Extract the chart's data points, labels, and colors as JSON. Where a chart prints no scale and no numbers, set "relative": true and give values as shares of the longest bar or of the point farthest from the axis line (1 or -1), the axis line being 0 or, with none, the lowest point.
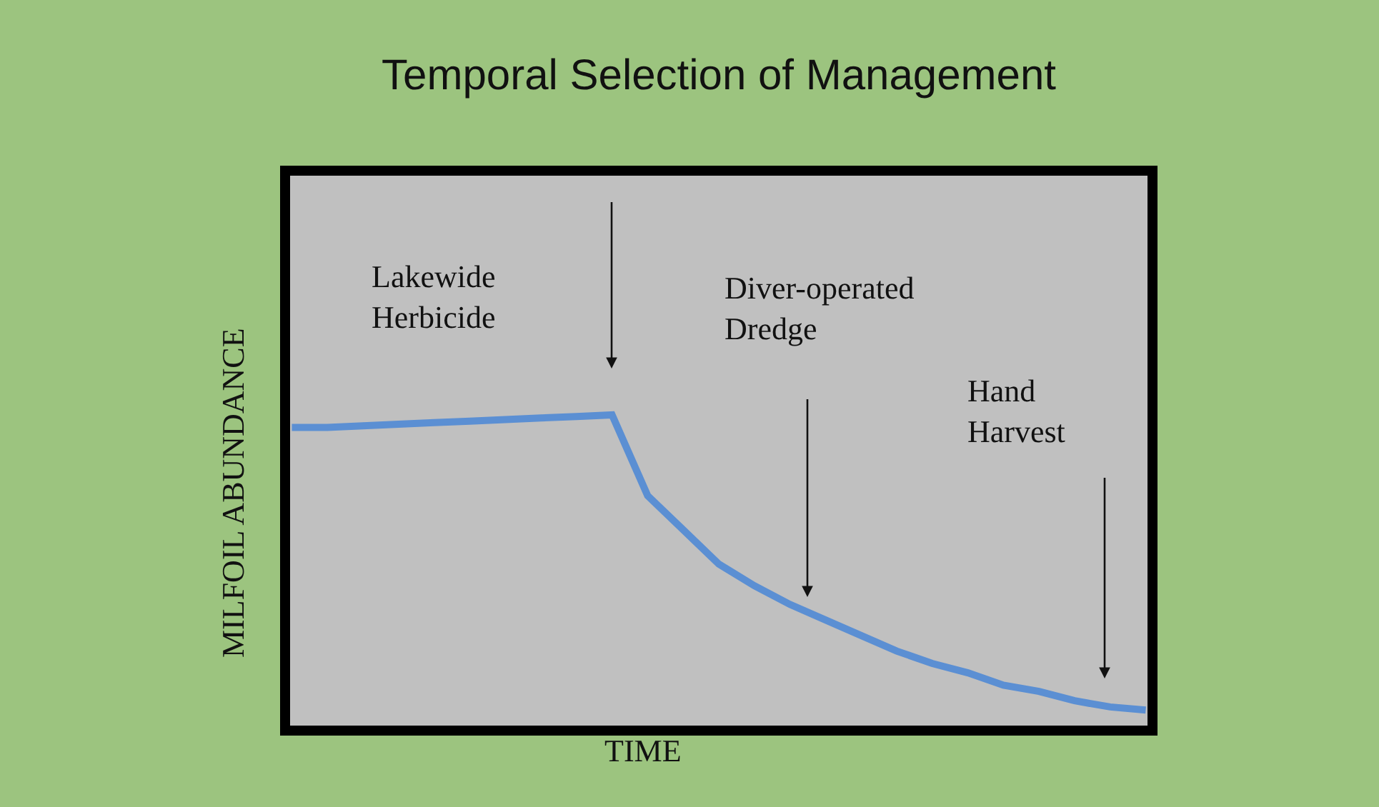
{
  "chart_data": {
    "type": "line",
    "title": "Temporal Selection of Management",
    "xlabel": "TIME",
    "ylabel": "MILFOIL ABUNDANCE",
    "relative": true,
    "categories": [
      null,
      null,
      null,
      null,
      null,
      null,
      null,
      null,
      null,
      null,
      null,
      null,
      null,
      null,
      null,
      null,
      null,
      null,
      null,
      null,
      null,
      null,
      null,
      null,
      null
    ],
    "series": [
      {
        "color": "#5b8fd3",
        "values": [
          0.96,
          0.96,
          0.965,
          0.97,
          0.975,
          0.98,
          0.985,
          0.99,
          0.995,
          1.0,
          0.74,
          0.63,
          0.52,
          0.45,
          0.39,
          0.34,
          0.29,
          0.24,
          0.2,
          0.17,
          0.13,
          0.11,
          0.08,
          0.06,
          0.05
        ]
      }
    ],
    "annotations": [
      "Lakewide\nHerbicide",
      "Diver-operated\nDredge",
      "Hand\nHarvest"
    ],
    "marker": "none",
    "line_style": "solid"
  }
}
